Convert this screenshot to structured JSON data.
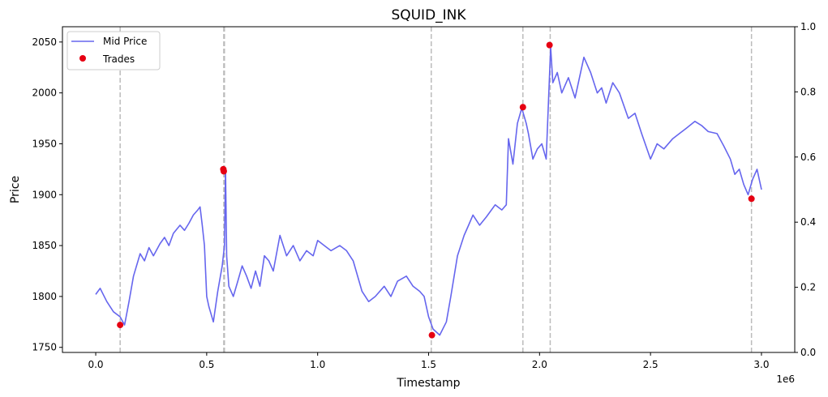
{
  "chart_data": {
    "type": "line",
    "title": "SQUID_INK",
    "xlabel": "Timestamp",
    "ylabel": "Price",
    "x_offset_label": "1e6",
    "xlim": [
      -0.15,
      3.15
    ],
    "ylim": [
      1745,
      2065
    ],
    "ylim_right": [
      0.0,
      1.0
    ],
    "x_ticks": [
      0.0,
      0.5,
      1.0,
      1.5,
      2.0,
      2.5,
      3.0
    ],
    "x_tick_labels": [
      "0.0",
      "0.5",
      "1.0",
      "1.5",
      "2.0",
      "2.5",
      "3.0"
    ],
    "y_ticks": [
      1750,
      1800,
      1850,
      1900,
      1950,
      2000,
      2050
    ],
    "y_tick_labels": [
      "1750",
      "1800",
      "1850",
      "1900",
      "1950",
      "2000",
      "2050"
    ],
    "y_right_ticks": [
      0.0,
      0.2,
      0.4,
      0.6,
      0.8,
      1.0
    ],
    "y_right_tick_labels": [
      "0.0",
      "0.2",
      "0.4",
      "0.6",
      "0.8",
      "1.0"
    ],
    "grid": false,
    "legend_position": "upper-left",
    "series": [
      {
        "name": "Mid Price",
        "kind": "line",
        "color": "#6666ee",
        "x": [
          0.0,
          0.02,
          0.05,
          0.08,
          0.11,
          0.13,
          0.15,
          0.17,
          0.2,
          0.22,
          0.24,
          0.26,
          0.29,
          0.31,
          0.33,
          0.35,
          0.38,
          0.4,
          0.42,
          0.44,
          0.46,
          0.47,
          0.48,
          0.49,
          0.5,
          0.51,
          0.53,
          0.55,
          0.57,
          0.58,
          0.585,
          0.59,
          0.6,
          0.62,
          0.64,
          0.66,
          0.68,
          0.7,
          0.72,
          0.74,
          0.76,
          0.78,
          0.8,
          0.83,
          0.86,
          0.89,
          0.92,
          0.95,
          0.98,
          1.0,
          1.03,
          1.06,
          1.1,
          1.13,
          1.16,
          1.2,
          1.23,
          1.26,
          1.3,
          1.33,
          1.36,
          1.4,
          1.43,
          1.46,
          1.48,
          1.5,
          1.52,
          1.55,
          1.58,
          1.6,
          1.63,
          1.66,
          1.68,
          1.7,
          1.73,
          1.76,
          1.8,
          1.83,
          1.85,
          1.86,
          1.88,
          1.9,
          1.92,
          1.94,
          1.95,
          1.97,
          1.99,
          2.01,
          2.03,
          2.05,
          2.06,
          2.08,
          2.1,
          2.13,
          2.16,
          2.2,
          2.23,
          2.26,
          2.28,
          2.3,
          2.33,
          2.36,
          2.4,
          2.43,
          2.46,
          2.5,
          2.53,
          2.56,
          2.6,
          2.63,
          2.66,
          2.7,
          2.73,
          2.76,
          2.8,
          2.83,
          2.86,
          2.88,
          2.9,
          2.92,
          2.94,
          2.96,
          2.98,
          3.0
        ],
        "y": [
          1802,
          1808,
          1795,
          1785,
          1780,
          1772,
          1795,
          1820,
          1842,
          1835,
          1848,
          1840,
          1852,
          1858,
          1850,
          1862,
          1870,
          1865,
          1872,
          1880,
          1885,
          1888,
          1870,
          1850,
          1800,
          1790,
          1775,
          1805,
          1830,
          1850,
          1925,
          1840,
          1810,
          1800,
          1815,
          1830,
          1820,
          1808,
          1825,
          1810,
          1840,
          1835,
          1825,
          1860,
          1840,
          1850,
          1835,
          1845,
          1840,
          1855,
          1850,
          1845,
          1850,
          1845,
          1835,
          1805,
          1795,
          1800,
          1810,
          1800,
          1815,
          1820,
          1810,
          1805,
          1800,
          1780,
          1768,
          1762,
          1775,
          1800,
          1840,
          1860,
          1870,
          1880,
          1870,
          1878,
          1890,
          1885,
          1890,
          1955,
          1930,
          1970,
          1985,
          1970,
          1960,
          1935,
          1945,
          1950,
          1935,
          2045,
          2010,
          2020,
          2000,
          2015,
          1995,
          2035,
          2020,
          2000,
          2005,
          1990,
          2010,
          2000,
          1975,
          1980,
          1960,
          1935,
          1950,
          1945,
          1955,
          1960,
          1965,
          1972,
          1968,
          1962,
          1960,
          1948,
          1935,
          1920,
          1925,
          1910,
          1900,
          1915,
          1925,
          1905
        ]
      },
      {
        "name": "Trades",
        "kind": "scatter",
        "color": "#e60012",
        "x": [
          0.11,
          0.575,
          0.577,
          1.515,
          1.925,
          2.045,
          2.955
        ],
        "y": [
          1772,
          1925,
          1923,
          1762,
          1986,
          2047,
          1896
        ]
      }
    ],
    "vlines": {
      "color": "#bbbbbb",
      "x": [
        0.11,
        0.577,
        0.58,
        1.512,
        1.925,
        2.048,
        2.955
      ]
    }
  }
}
